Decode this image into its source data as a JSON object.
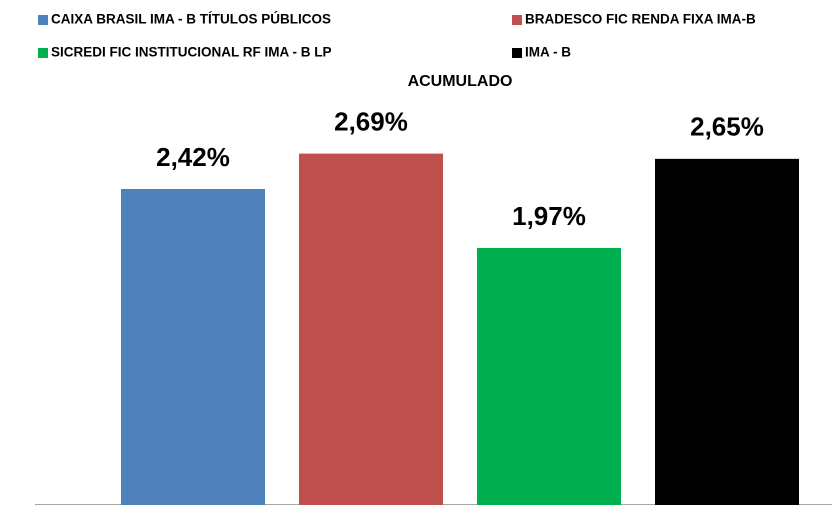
{
  "chart_data": {
    "type": "bar",
    "categories": [
      "ACUMULADO"
    ],
    "series": [
      {
        "name": "CAIXA BRASIL IMA - B TÍTULOS PÚBLICOS",
        "color": "#4f81bd",
        "values": [
          2.42
        ],
        "value_labels": [
          "2,42%"
        ]
      },
      {
        "name": "BRADESCO FIC RENDA FIXA IMA-B",
        "color": "#c0504d",
        "values": [
          2.69
        ],
        "value_labels": [
          "2,69%"
        ]
      },
      {
        "name": "SICREDI FIC INSTITUCIONAL RF IMA - B LP",
        "color": "#00b050",
        "values": [
          1.97
        ],
        "value_labels": [
          "1,97%"
        ]
      },
      {
        "name": "IMA - B",
        "color": "#000000",
        "values": [
          2.65
        ],
        "value_labels": [
          "2,65%"
        ]
      }
    ],
    "ylim": [
      0,
      3
    ],
    "legend": "top"
  }
}
